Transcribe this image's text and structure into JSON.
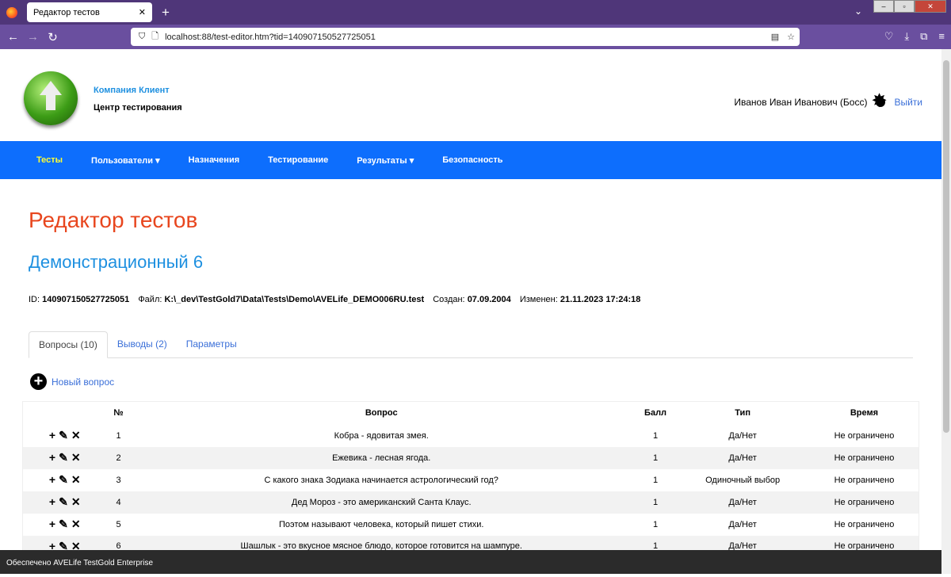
{
  "browser": {
    "tab_title": "Редактор тестов",
    "url": "localhost:88/test-editor.htm?tid=140907150527725051"
  },
  "header": {
    "company": "Компания Клиент",
    "center": "Центр тестирования",
    "user": "Иванов Иван Иванович (Босс)",
    "logout": "Выйти"
  },
  "nav": [
    {
      "label": "Тесты",
      "active": true
    },
    {
      "label": "Пользователи ▾"
    },
    {
      "label": "Назначения"
    },
    {
      "label": "Тестирование"
    },
    {
      "label": "Результаты ▾"
    },
    {
      "label": "Безопасность"
    }
  ],
  "page": {
    "title": "Редактор тестов",
    "test_name": "Демонстрационный 6",
    "info": {
      "id_label": "ID:",
      "id": "140907150527725051",
      "file_label": "Файл:",
      "file": "K:\\_dev\\TestGold7\\Data\\Tests\\Demo\\AVELife_DEMO006RU.test",
      "created_label": "Создан:",
      "created": "07.09.2004",
      "modified_label": "Изменен:",
      "modified": "21.11.2023 17:24:18"
    }
  },
  "tabs": [
    "Вопросы (10)",
    "Выводы (2)",
    "Параметры"
  ],
  "new_question": "Новый вопрос",
  "table": {
    "headers": [
      "",
      "№",
      "Вопрос",
      "Балл",
      "Тип",
      "Время"
    ],
    "rows": [
      [
        "1",
        "Кобра - ядовитая змея.",
        "1",
        "Да/Нет",
        "Не ограничено"
      ],
      [
        "2",
        "Ежевика - лесная ягода.",
        "1",
        "Да/Нет",
        "Не ограничено"
      ],
      [
        "3",
        "С какого знака Зодиака начинается астрологический год?",
        "1",
        "Одиночный выбор",
        "Не ограничено"
      ],
      [
        "4",
        "Дед Мороз - это американский Санта Клаус.",
        "1",
        "Да/Нет",
        "Не ограничено"
      ],
      [
        "5",
        "Поэтом называют человека, который пишет стихи.",
        "1",
        "Да/Нет",
        "Не ограничено"
      ],
      [
        "6",
        "Шашлык - это вкусное мясное блюдо, которое готовится на шампуре.",
        "1",
        "Да/Нет",
        "Не ограничено"
      ]
    ]
  },
  "footer": "Обеспечено AVELife TestGold Enterprise",
  "colors": {
    "navbar": "#0d6efd",
    "title": "#e8461e",
    "subtitle": "#1e90e0",
    "active_nav": "#ffff33"
  }
}
